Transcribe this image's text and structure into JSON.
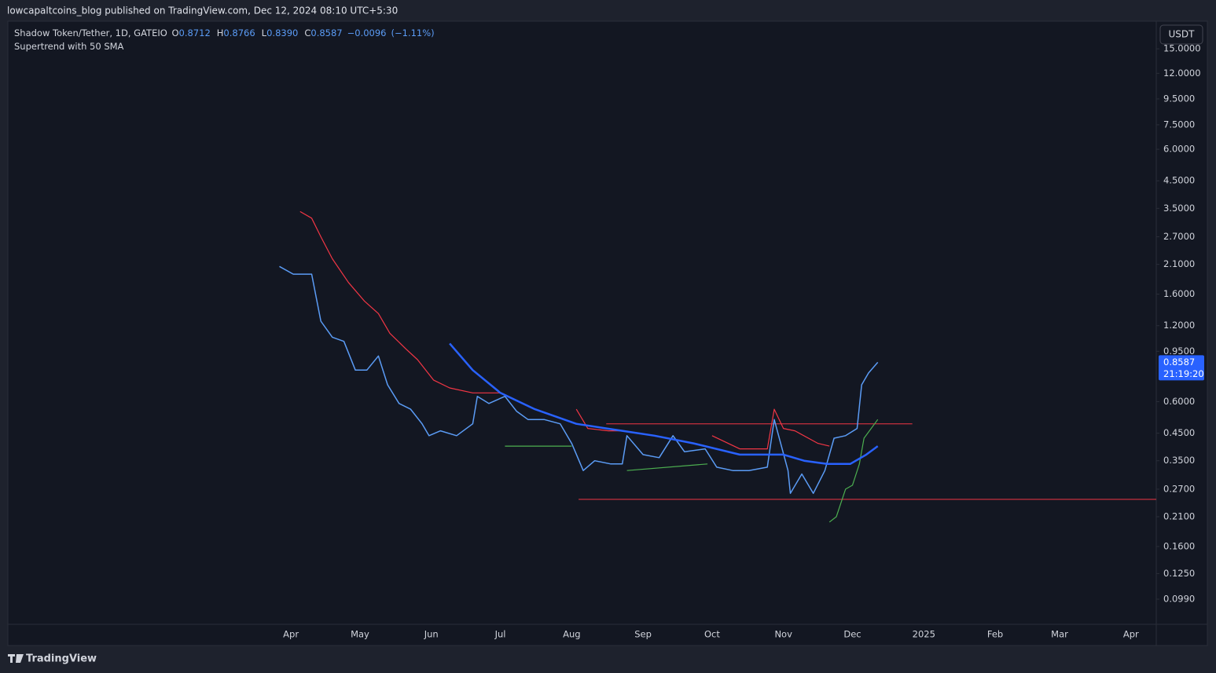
{
  "header": "lowcapaltcoins_blog published on TradingView.com, Dec 12, 2024 08:10 UTC+5:30",
  "footer": "TradingView",
  "currency": "USDT",
  "chart_data": {
    "type": "line",
    "indicator": "Supertrend with 50 SMA",
    "ohlc": [
      {
        "key": "O",
        "value": 0.8712
      },
      {
        "key": "H",
        "value": 0.8766
      },
      {
        "key": "L",
        "value": {
          "value": 0.839,
          "label": "0.8390"
        }
      },
      {
        "key": "C",
        "value": 0.8587
      }
    ],
    "change": {
      "value": -0.0096,
      "label": "−0.0096"
    },
    "change_pct": {
      "value": -1.11,
      "label": "(−1.11%)"
    },
    "last_price": 0.8587,
    "countdown": "21:19:20",
    "log_scale": true,
    "grid": false,
    "ylim": [
      0.0787,
      19.3
    ],
    "yticks": [
      {
        "value": 15,
        "label": "15.0000"
      },
      {
        "value": 12,
        "label": "12.0000"
      },
      {
        "value": 9.5,
        "label": "9.5000"
      },
      {
        "value": 7.5,
        "label": "7.5000"
      },
      {
        "value": 6,
        "label": "6.0000"
      },
      {
        "value": 4.5,
        "label": "4.5000"
      },
      {
        "value": 3.5,
        "label": "3.5000"
      },
      {
        "value": 2.7,
        "label": "2.7000"
      },
      {
        "value": 2.1,
        "label": "2.1000"
      },
      {
        "value": 1.6,
        "label": "1.6000"
      },
      {
        "value": 1.2,
        "label": "1.2000"
      },
      {
        "value": 0.95,
        "label": "0.9500"
      },
      {
        "value": 0.6,
        "label": "0.6000"
      },
      {
        "value": 0.45,
        "label": "0.4500"
      },
      {
        "value": 0.35,
        "label": "0.3500"
      },
      {
        "value": 0.27,
        "label": "0.2700"
      },
      {
        "value": 0.21,
        "label": "0.2100"
      },
      {
        "value": 0.16,
        "label": "0.1600"
      },
      {
        "value": 0.125,
        "label": "0.1250"
      },
      {
        "value": 0.099,
        "label": "0.0990"
      }
    ],
    "xlim": [
      "2023-11-30",
      "2025-04-12"
    ],
    "xticks": [
      {
        "value": "2024-04-01",
        "label": "Apr"
      },
      {
        "value": "2024-05-01",
        "label": "May"
      },
      {
        "value": "2024-06-01",
        "label": "Jun"
      },
      {
        "value": "2024-07-01",
        "label": "Jul"
      },
      {
        "value": "2024-08-01",
        "label": "Aug"
      },
      {
        "value": "2024-09-01",
        "label": "Sep"
      },
      {
        "value": "2024-10-01",
        "label": "Oct"
      },
      {
        "value": "2024-11-01",
        "label": "Nov"
      },
      {
        "value": "2024-12-01",
        "label": "Dec"
      },
      {
        "value": "2025-01-01",
        "label": "2025"
      },
      {
        "value": "2025-02-01",
        "label": "Feb"
      },
      {
        "value": "2025-03-01",
        "label": "Mar"
      },
      {
        "value": "2025-04-01",
        "label": "Apr"
      }
    ],
    "series": [
      {
        "name": "Shadow Token/Tether, 1D, GATEIO",
        "color": "#5b9cf6",
        "width": 1.5,
        "x": [
          "2024-03-27",
          "2024-04-02",
          "2024-04-07",
          "2024-04-10",
          "2024-04-14",
          "2024-04-19",
          "2024-04-24",
          "2024-04-29",
          "2024-05-04",
          "2024-05-09",
          "2024-05-13",
          "2024-05-18",
          "2024-05-23",
          "2024-05-28",
          "2024-05-31",
          "2024-06-05",
          "2024-06-12",
          "2024-06-19",
          "2024-06-21",
          "2024-06-26",
          "2024-07-03",
          "2024-07-08",
          "2024-07-13",
          "2024-07-20",
          "2024-07-27",
          "2024-08-01",
          "2024-08-06",
          "2024-08-11",
          "2024-08-18",
          "2024-08-23",
          "2024-08-25",
          "2024-09-01",
          "2024-09-08",
          "2024-09-14",
          "2024-09-19",
          "2024-09-28",
          "2024-10-03",
          "2024-10-10",
          "2024-10-17",
          "2024-10-25",
          "2024-10-28",
          "2024-11-03",
          "2024-11-04",
          "2024-11-09",
          "2024-11-14",
          "2024-11-19",
          "2024-11-23",
          "2024-11-28",
          "2024-12-03",
          "2024-12-05",
          "2024-12-08",
          "2024-12-12"
        ],
        "values": [
          2.06,
          1.92,
          1.92,
          1.92,
          1.25,
          1.08,
          1.04,
          0.8,
          0.8,
          0.91,
          0.7,
          0.59,
          0.56,
          0.49,
          0.44,
          0.46,
          0.44,
          0.49,
          0.63,
          0.59,
          0.63,
          0.55,
          0.51,
          0.51,
          0.49,
          0.41,
          0.32,
          0.35,
          0.34,
          0.34,
          0.44,
          0.37,
          0.36,
          0.44,
          0.38,
          0.39,
          0.33,
          0.32,
          0.32,
          0.33,
          0.51,
          0.32,
          0.26,
          0.31,
          0.26,
          0.32,
          0.43,
          0.44,
          0.47,
          0.7,
          0.78,
          0.8587
        ]
      },
      {
        "color": "#f23645",
        "width": 1.2,
        "x": [
          "2024-04-05",
          "2024-04-10",
          "2024-04-14",
          "2024-04-19",
          "2024-04-26",
          "2024-05-03",
          "2024-05-09",
          "2024-05-14",
          "2024-05-21",
          "2024-05-26",
          "2024-06-02",
          "2024-06-09",
          "2024-06-19",
          "2024-07-01",
          "2024-07-15",
          "2024-08-03",
          "2024-08-08",
          "2024-08-17",
          "2024-08-23",
          "2024-09-15",
          "2024-10-01",
          "2024-10-13",
          "2024-10-25",
          "2024-10-28",
          "2024-11-01",
          "2024-11-06",
          "2024-11-16",
          "2024-11-21"
        ],
        "values": [
          3.4,
          3.2,
          2.7,
          2.21,
          1.78,
          1.5,
          1.34,
          1.12,
          0.97,
          0.88,
          0.73,
          0.68,
          0.65,
          0.65,
          null,
          0.56,
          0.47,
          0.46,
          0.46,
          null,
          0.44,
          0.39,
          0.39,
          0.56,
          0.47,
          0.46,
          0.41,
          0.4
        ]
      },
      {
        "color": "#4caf50",
        "width": 1.2,
        "x": [
          "2024-07-03",
          "2024-08-01",
          "2024-08-10",
          "2024-08-25",
          "2024-09-29",
          "2024-10-20",
          "2024-11-21",
          "2024-11-24",
          "2024-11-28",
          "2024-12-01",
          "2024-12-04",
          "2024-12-06",
          "2024-12-12"
        ],
        "values": [
          0.4,
          0.4,
          null,
          0.32,
          0.34,
          null,
          0.2,
          0.21,
          0.27,
          0.28,
          0.34,
          0.43,
          0.51
        ]
      },
      {
        "color": "#2962ff",
        "width": 2.5,
        "x": [
          "2024-06-09",
          "2024-06-19",
          "2024-07-01",
          "2024-07-16",
          "2024-08-03",
          "2024-08-23",
          "2024-09-06",
          "2024-09-23",
          "2024-10-13",
          "2024-10-25",
          "2024-11-01",
          "2024-11-10",
          "2024-11-20",
          "2024-11-30",
          "2024-12-07",
          "2024-12-12"
        ],
        "values": [
          1.02,
          0.8,
          0.65,
          0.56,
          0.49,
          0.46,
          0.44,
          0.41,
          0.37,
          0.37,
          0.37,
          0.35,
          0.34,
          0.34,
          0.37,
          0.4
        ]
      }
    ],
    "levels": [
      {
        "value": 0.49,
        "color": "#f23645",
        "x": [
          "2024-08-16",
          "2024-12-27"
        ]
      },
      {
        "value": 0.246,
        "color": "#f23645",
        "x": [
          "2024-08-04",
          "2025-04-12"
        ]
      }
    ]
  }
}
